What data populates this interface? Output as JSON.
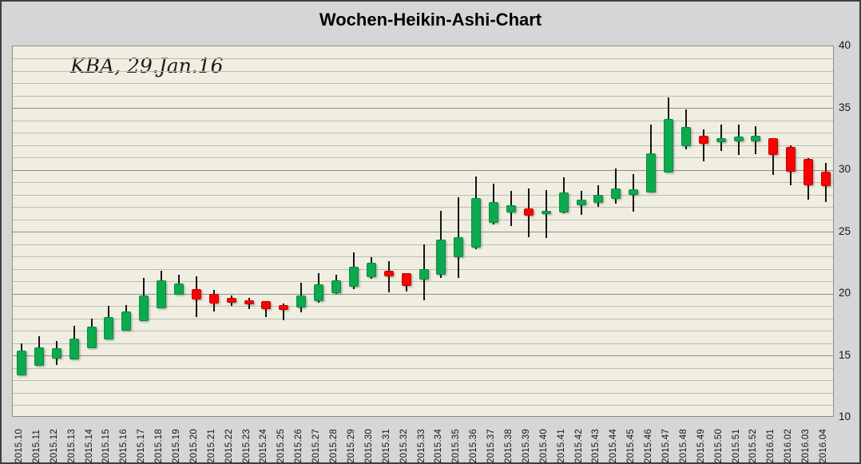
{
  "chart_data": {
    "type": "candlestick",
    "subtype": "heikin-ashi-weekly",
    "title": "Wochen-Heikin-Ashi-Chart",
    "annotation": "KBA, 29.Jan.16",
    "y_axis": {
      "min": 10,
      "max": 40,
      "tick_step": 5,
      "minor_step": 1,
      "side": "right",
      "ticks": [
        40,
        35,
        30,
        25,
        20,
        15,
        10
      ]
    },
    "grid": "horizontal-minor-and-major",
    "legend": "none",
    "colors": {
      "up": "#0caa4e",
      "up_border": "#0a8a40",
      "down": "#fb0200",
      "down_border": "#c40000",
      "wick": "#141414",
      "plot_bg": "#efeee1",
      "outer_bg": "#d6d6d6",
      "grid_minor": "#bdbcb2",
      "grid_major": "#8f8e84"
    },
    "candles": [
      {
        "label": "2015.10",
        "open": 13.45,
        "high": 16.0,
        "low": 13.45,
        "close": 15.45
      },
      {
        "label": "2015.11",
        "open": 14.2,
        "high": 16.6,
        "low": 14.2,
        "close": 15.7
      },
      {
        "label": "2015.12",
        "open": 14.75,
        "high": 16.2,
        "low": 14.25,
        "close": 15.6
      },
      {
        "label": "2015.13",
        "open": 14.7,
        "high": 17.4,
        "low": 14.7,
        "close": 16.4
      },
      {
        "label": "2015.14",
        "open": 15.6,
        "high": 18.0,
        "low": 15.6,
        "close": 17.35
      },
      {
        "label": "2015.15",
        "open": 16.35,
        "high": 19.05,
        "low": 16.35,
        "close": 18.1
      },
      {
        "label": "2015.16",
        "open": 17.0,
        "high": 19.1,
        "low": 17.0,
        "close": 18.6
      },
      {
        "label": "2015.17",
        "open": 17.8,
        "high": 21.3,
        "low": 17.8,
        "close": 19.9
      },
      {
        "label": "2015.18",
        "open": 18.85,
        "high": 21.9,
        "low": 18.85,
        "close": 21.1
      },
      {
        "label": "2015.19",
        "open": 19.95,
        "high": 21.55,
        "low": 19.95,
        "close": 20.85
      },
      {
        "label": "2015.20",
        "open": 20.4,
        "high": 21.4,
        "low": 18.15,
        "close": 19.55
      },
      {
        "label": "2015.21",
        "open": 20.0,
        "high": 20.3,
        "low": 18.6,
        "close": 19.2
      },
      {
        "label": "2015.22",
        "open": 19.65,
        "high": 19.9,
        "low": 19.0,
        "close": 19.3
      },
      {
        "label": "2015.23",
        "open": 19.5,
        "high": 19.7,
        "low": 18.8,
        "close": 19.15
      },
      {
        "label": "2015.24",
        "open": 19.4,
        "high": 19.4,
        "low": 18.1,
        "close": 18.8
      },
      {
        "label": "2015.25",
        "open": 19.1,
        "high": 19.25,
        "low": 17.9,
        "close": 18.7
      },
      {
        "label": "2015.26",
        "open": 18.9,
        "high": 20.9,
        "low": 18.5,
        "close": 19.85
      },
      {
        "label": "2015.27",
        "open": 19.4,
        "high": 21.65,
        "low": 19.3,
        "close": 20.75
      },
      {
        "label": "2015.28",
        "open": 20.05,
        "high": 21.55,
        "low": 20.0,
        "close": 21.1
      },
      {
        "label": "2015.29",
        "open": 20.55,
        "high": 23.35,
        "low": 20.4,
        "close": 22.2
      },
      {
        "label": "2015.30",
        "open": 21.35,
        "high": 23.0,
        "low": 21.2,
        "close": 22.5
      },
      {
        "label": "2015.31",
        "open": 21.9,
        "high": 22.65,
        "low": 20.1,
        "close": 21.4
      },
      {
        "label": "2015.32",
        "open": 21.65,
        "high": 21.7,
        "low": 20.2,
        "close": 20.65
      },
      {
        "label": "2015.33",
        "open": 21.15,
        "high": 24.0,
        "low": 19.5,
        "close": 22.0
      },
      {
        "label": "2015.34",
        "open": 21.55,
        "high": 26.7,
        "low": 21.3,
        "close": 24.4
      },
      {
        "label": "2015.35",
        "open": 22.95,
        "high": 27.8,
        "low": 21.3,
        "close": 24.55
      },
      {
        "label": "2015.36",
        "open": 23.75,
        "high": 29.5,
        "low": 23.6,
        "close": 27.75
      },
      {
        "label": "2015.37",
        "open": 25.75,
        "high": 28.9,
        "low": 25.6,
        "close": 27.4
      },
      {
        "label": "2015.38",
        "open": 26.55,
        "high": 28.3,
        "low": 25.5,
        "close": 27.15
      },
      {
        "label": "2015.39",
        "open": 26.9,
        "high": 28.5,
        "low": 24.6,
        "close": 26.3
      },
      {
        "label": "2015.40",
        "open": 26.45,
        "high": 28.4,
        "low": 24.5,
        "close": 26.7
      },
      {
        "label": "2015.41",
        "open": 26.6,
        "high": 29.4,
        "low": 26.5,
        "close": 28.2
      },
      {
        "label": "2015.42",
        "open": 27.15,
        "high": 28.3,
        "low": 26.4,
        "close": 27.6
      },
      {
        "label": "2015.43",
        "open": 27.35,
        "high": 28.8,
        "low": 27.0,
        "close": 28.0
      },
      {
        "label": "2015.44",
        "open": 27.7,
        "high": 30.1,
        "low": 27.3,
        "close": 28.5
      },
      {
        "label": "2015.45",
        "open": 28.0,
        "high": 29.7,
        "low": 26.65,
        "close": 28.45
      },
      {
        "label": "2015.46",
        "open": 28.2,
        "high": 33.65,
        "low": 28.2,
        "close": 31.35
      },
      {
        "label": "2015.47",
        "open": 29.8,
        "high": 35.9,
        "low": 29.8,
        "close": 34.1
      },
      {
        "label": "2015.48",
        "open": 31.95,
        "high": 34.9,
        "low": 31.7,
        "close": 33.5
      },
      {
        "label": "2015.49",
        "open": 32.75,
        "high": 33.3,
        "low": 30.7,
        "close": 32.1
      },
      {
        "label": "2015.50",
        "open": 32.25,
        "high": 33.7,
        "low": 31.55,
        "close": 32.6
      },
      {
        "label": "2015.51",
        "open": 32.35,
        "high": 33.65,
        "low": 31.2,
        "close": 32.7
      },
      {
        "label": "2015.52",
        "open": 32.35,
        "high": 33.55,
        "low": 31.3,
        "close": 32.75
      },
      {
        "label": "2016.01",
        "open": 32.55,
        "high": 32.6,
        "low": 29.6,
        "close": 31.2
      },
      {
        "label": "2016.02",
        "open": 31.9,
        "high": 32.0,
        "low": 28.8,
        "close": 29.85
      },
      {
        "label": "2016.03",
        "open": 30.9,
        "high": 31.0,
        "low": 27.6,
        "close": 28.8
      },
      {
        "label": "2016.04",
        "open": 29.9,
        "high": 30.55,
        "low": 27.4,
        "close": 28.7
      }
    ]
  }
}
